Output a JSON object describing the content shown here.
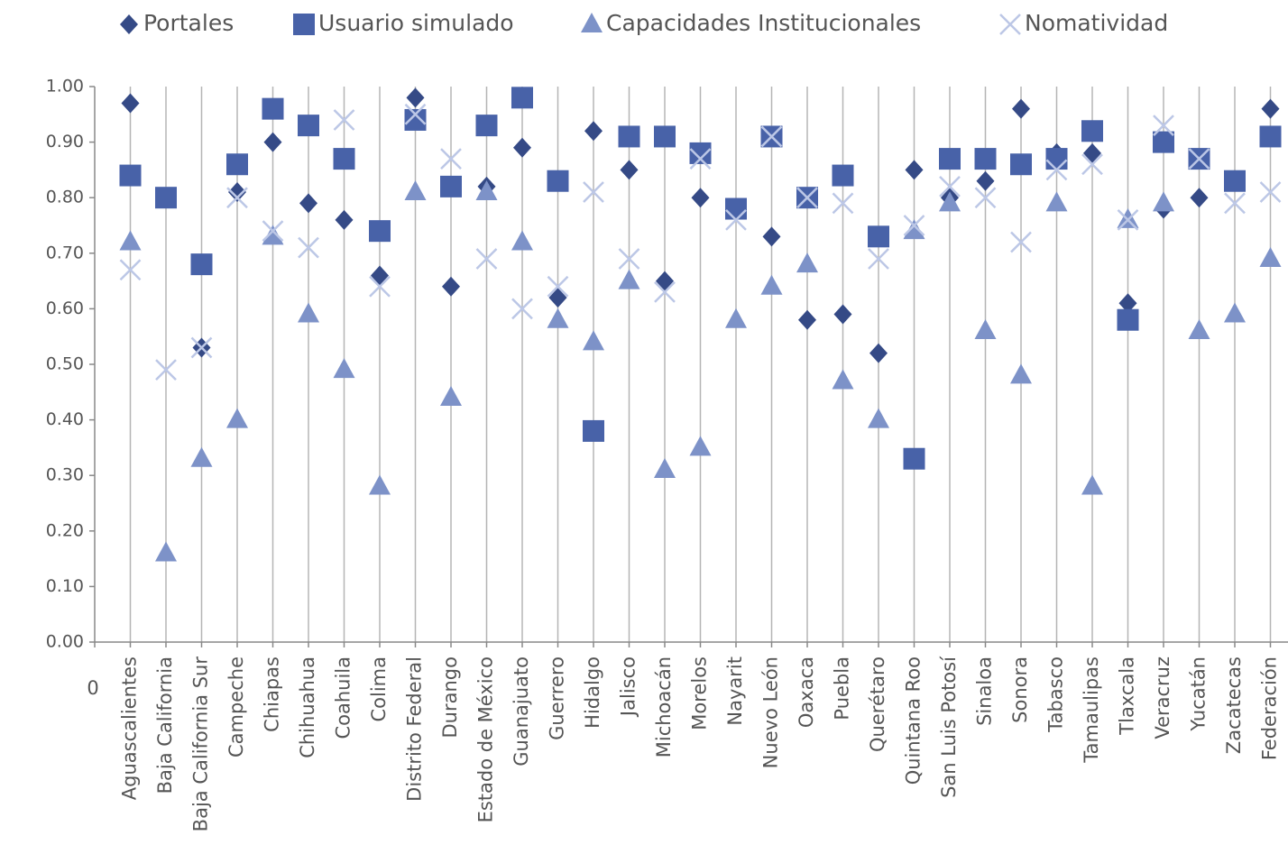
{
  "chart_data": {
    "type": "dot",
    "annotation_categories_note_free": null,
    "categories": [
      "0",
      "Aguascalientes",
      "Baja California",
      "Baja California Sur",
      "Campeche",
      "Chiapas",
      "Chihuahua",
      "Coahuila",
      "Colima",
      "Distrito Federal",
      "Durango",
      "Estado de México",
      "Guanajuato",
      "Guerrero",
      "Hidalgo",
      "Jalisco",
      "Michoacán",
      "Morelos",
      "Nayarit",
      "Nuevo León",
      "Oaxaca",
      "Puebla",
      "Querétaro",
      "Quintana Roo",
      "San Luis Potosí",
      "Sinaloa",
      "Sonora",
      "Tabasco",
      "Tamaulipas",
      "Tlaxcala",
      "Veracruz",
      "Yucatán",
      "Zacatecas",
      "Federación"
    ],
    "series": [
      {
        "name": "Portales",
        "color": "#354a86",
        "marker": "diamond",
        "values": [
          null,
          0.97,
          null,
          0.53,
          0.81,
          0.9,
          0.79,
          0.76,
          0.66,
          0.98,
          0.64,
          0.82,
          0.89,
          0.62,
          0.92,
          0.85,
          0.65,
          0.8,
          null,
          0.73,
          0.58,
          0.59,
          0.52,
          0.85,
          0.8,
          0.83,
          0.96,
          0.88,
          0.88,
          0.61,
          0.78,
          0.8,
          null,
          0.96
        ]
      },
      {
        "name": "Usuario simulado",
        "color": "#4862a8",
        "marker": "square",
        "values": [
          null,
          0.84,
          0.8,
          0.68,
          0.86,
          0.96,
          0.93,
          0.87,
          0.74,
          0.94,
          0.82,
          0.93,
          0.98,
          0.83,
          0.38,
          0.91,
          0.91,
          0.88,
          0.78,
          0.91,
          0.8,
          0.84,
          0.73,
          0.33,
          0.87,
          0.87,
          0.86,
          0.87,
          0.92,
          0.58,
          0.9,
          0.87,
          0.83,
          0.91
        ]
      },
      {
        "name": "Capacidades Institucionales",
        "color": "#7d92c8",
        "marker": "triangle",
        "values": [
          null,
          0.72,
          0.16,
          0.33,
          0.4,
          0.73,
          0.59,
          0.49,
          0.28,
          0.81,
          0.44,
          0.81,
          0.72,
          0.58,
          0.54,
          0.65,
          0.31,
          0.35,
          0.58,
          0.64,
          0.68,
          0.47,
          0.4,
          0.74,
          0.79,
          0.56,
          0.48,
          0.79,
          0.28,
          0.76,
          0.79,
          0.56,
          0.59,
          0.69
        ]
      },
      {
        "name": "Nomatividad",
        "color": "#bcc7e6",
        "marker": "x",
        "values": [
          null,
          0.67,
          0.49,
          0.53,
          0.8,
          0.74,
          0.71,
          0.94,
          0.64,
          0.95,
          0.87,
          0.69,
          0.6,
          0.64,
          0.81,
          0.69,
          0.63,
          0.87,
          0.76,
          0.91,
          0.8,
          0.79,
          0.69,
          0.75,
          0.82,
          0.8,
          0.72,
          0.85,
          0.86,
          0.76,
          0.93,
          0.87,
          0.79,
          0.81
        ]
      }
    ],
    "ylim": [
      0,
      1
    ],
    "yticks": [
      {
        "value": 0,
        "label": "0.00"
      },
      {
        "value": 0.1,
        "label": "0.10"
      },
      {
        "value": 0.2,
        "label": "0.20"
      },
      {
        "value": 0.3,
        "label": "0.30"
      },
      {
        "value": 0.4,
        "label": "0.40"
      },
      {
        "value": 0.5,
        "label": "0.50"
      },
      {
        "value": 0.6,
        "label": "0.60"
      },
      {
        "value": 0.7,
        "label": "0.70"
      },
      {
        "value": 0.8,
        "label": "0.80"
      },
      {
        "value": 0.9,
        "label": "0.90"
      },
      {
        "value": 1,
        "label": "1.00"
      }
    ],
    "legend": "top",
    "category_lines": true
  }
}
